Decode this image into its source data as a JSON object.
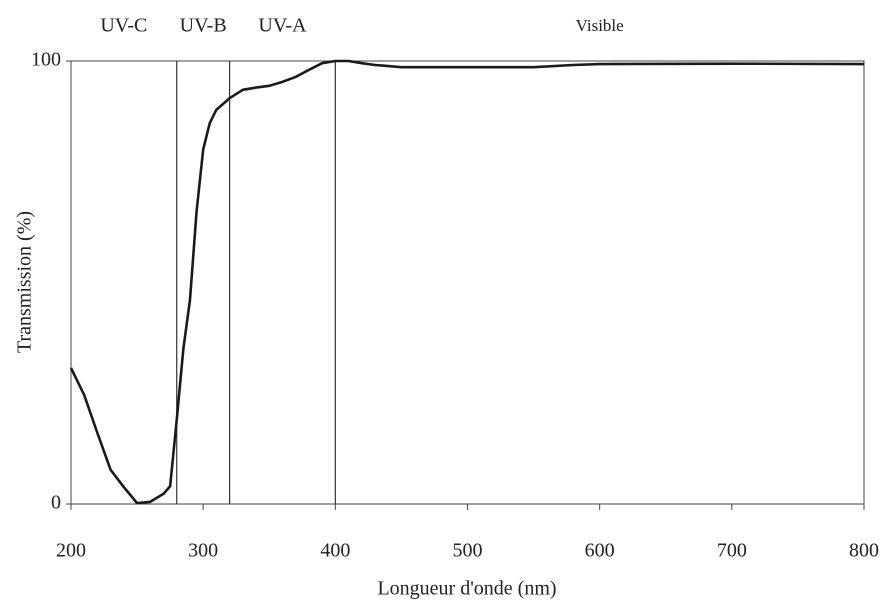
{
  "chart_data": {
    "type": "line",
    "xlabel": "Longueur d'onde (nm)",
    "ylabel": "Transmission (%)",
    "regions": [
      {
        "label": "UV-C",
        "from": 200,
        "to": 280
      },
      {
        "label": "UV-B",
        "from": 280,
        "to": 320
      },
      {
        "label": "UV-A",
        "from": 320,
        "to": 400
      },
      {
        "label": "Visible",
        "from": 400,
        "to": 800
      }
    ],
    "x": [
      200,
      210,
      220,
      230,
      240,
      250,
      260,
      270,
      275,
      280,
      285,
      290,
      295,
      300,
      305,
      310,
      320,
      330,
      340,
      350,
      360,
      370,
      380,
      390,
      400,
      410,
      420,
      430,
      450,
      500,
      550,
      580,
      600,
      700,
      800
    ],
    "series": [
      {
        "name": "Transmission",
        "color": "#1a1a1a",
        "values": [
          30.7,
          24.6,
          16,
          7.7,
          3.8,
          0.2,
          0.5,
          2.3,
          4,
          19,
          35,
          46,
          66,
          80,
          86,
          89,
          91.6,
          93.5,
          94,
          94.4,
          95.3,
          96.4,
          98,
          99.5,
          100,
          100,
          99.5,
          99.1,
          98.6,
          98.6,
          98.6,
          99.1,
          99.3,
          99.4,
          99.3
        ]
      }
    ],
    "xlim": [
      200,
      800
    ],
    "xticks": [
      200,
      300,
      400,
      500,
      600,
      700,
      800
    ],
    "ylim": [
      0,
      100
    ],
    "yticks": [
      0,
      100
    ]
  }
}
